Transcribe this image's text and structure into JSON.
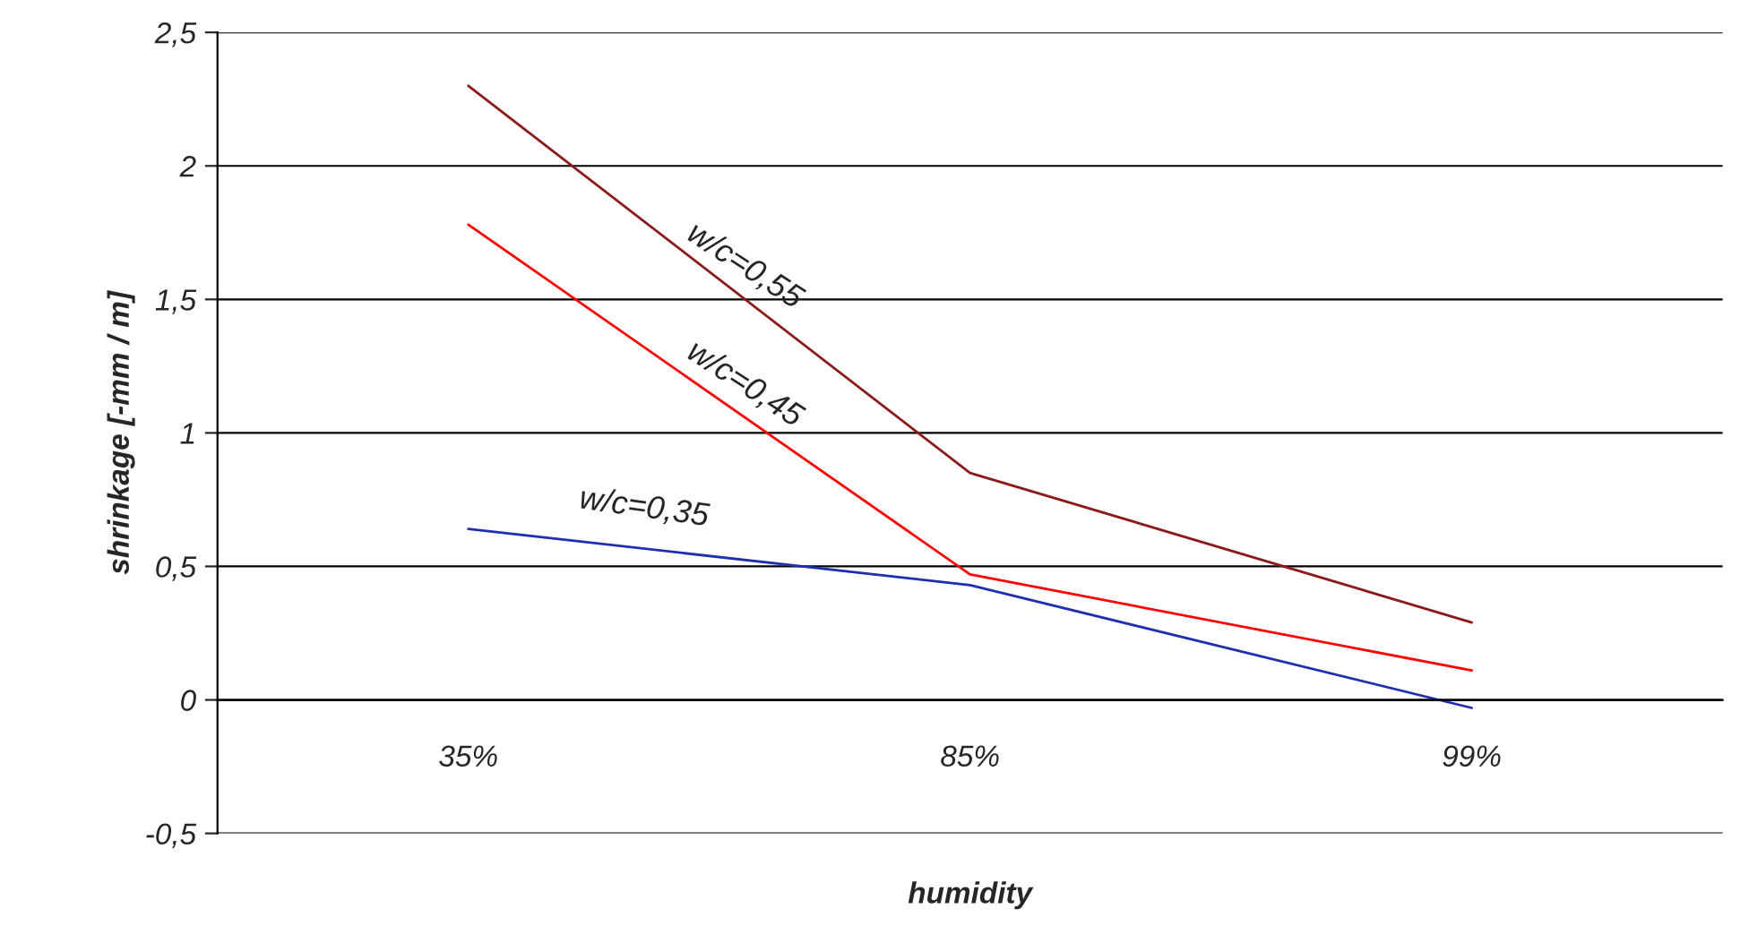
{
  "chart_data": {
    "type": "line",
    "xlabel": "humidity",
    "ylabel": "shrinkage [-mm / m]",
    "categories": [
      "35%",
      "85%",
      "99%"
    ],
    "series": [
      {
        "name": "w/c=0,55",
        "color": "#8b1a1a",
        "values": [
          2.3,
          0.85,
          0.29
        ]
      },
      {
        "name": "w/c=0,45",
        "color": "#ff0000",
        "values": [
          1.78,
          0.47,
          0.11
        ]
      },
      {
        "name": "w/c=0,35",
        "color": "#1f2fb0",
        "values": [
          0.64,
          0.43,
          -0.03
        ]
      }
    ],
    "ylim": [
      -0.5,
      2.5
    ],
    "yticks": [
      {
        "value": -0.5,
        "label": "-0,5"
      },
      0,
      {
        "value": 0.5,
        "label": "0,5"
      },
      1,
      {
        "value": 1.5,
        "label": "1,5"
      },
      2,
      {
        "value": 2.5,
        "label": "2,5"
      }
    ],
    "grid": "y",
    "legend": false,
    "marker": "none",
    "line_style": "solid"
  }
}
